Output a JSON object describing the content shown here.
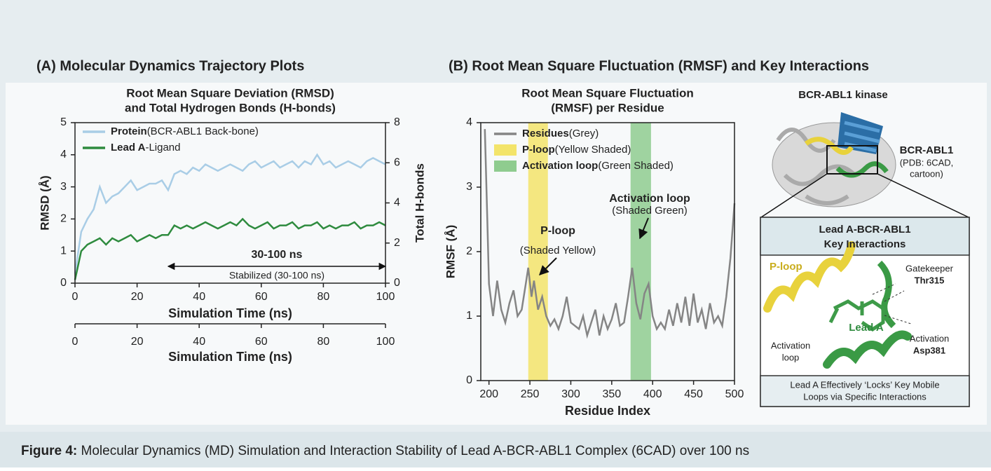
{
  "panel_a_title": "(A)  Molecular Dynamics Trajectory Plots",
  "panel_b_title": "(B)  Root Mean Square Fluctuation (RMSF) and Key Interactions",
  "caption": {
    "label": "Figure 4:",
    "text": "Molecular Dynamics (MD) Simulation and Interaction Stability of Lead A-BCR-ABL1 Complex (6CAD) over 100 ns"
  },
  "structure": {
    "title": "BCR-ABL1 kinase",
    "label": "BCR-ABL1",
    "sublabel": [
      "(PDB: 6CAD,",
      "cartoon)"
    ],
    "inset": {
      "title": [
        "Lead A-BCR-ABL1",
        "Key Interactions"
      ],
      "p_loop": "P-loop",
      "gatekeeper": [
        "Gatekeeper",
        "Thr315"
      ],
      "ligand": "Lead A",
      "activation": [
        "Activation",
        "Asp381"
      ],
      "activation_loop": [
        "Activation",
        "loop"
      ],
      "footer": [
        "Lead A Effectively ‘Locks’ Key Mobile",
        "Loops via Specific Interactions"
      ]
    }
  },
  "chart_data": [
    {
      "type": "line",
      "title": [
        "Root Mean Square Deviation (RMSD)",
        "and Total Hydrogen Bonds (H-bonds)"
      ],
      "xlabel": "Simulation Time (ns)",
      "ylabel": "RMSD (Å)",
      "y2label": "Total H-bonds",
      "x2label": "Simulation Time (ns)",
      "xlim": [
        0,
        100
      ],
      "xticks": [
        0,
        20,
        40,
        60,
        80,
        100
      ],
      "x2lim": [
        0,
        100
      ],
      "x2ticks": [
        0,
        20,
        40,
        60,
        80,
        100
      ],
      "ylim": [
        0,
        5
      ],
      "yticks": [
        0,
        1,
        2,
        3,
        4,
        5
      ],
      "y2lim": [
        0,
        8
      ],
      "y2ticks": [
        0,
        2,
        4,
        6,
        8
      ],
      "x": [
        0,
        2,
        4,
        6,
        8,
        10,
        12,
        14,
        16,
        18,
        20,
        22,
        24,
        26,
        28,
        30,
        32,
        34,
        36,
        38,
        40,
        42,
        44,
        46,
        48,
        50,
        52,
        54,
        56,
        58,
        60,
        62,
        64,
        66,
        68,
        70,
        72,
        74,
        76,
        78,
        80,
        82,
        84,
        86,
        88,
        90,
        92,
        94,
        96,
        98,
        100
      ],
      "series": [
        {
          "name": "Protein",
          "detail": "(BCR-ABL1 Back-bone)",
          "color": "#a9cde6",
          "values": [
            0.3,
            1.6,
            2.0,
            2.3,
            3.0,
            2.5,
            2.7,
            2.8,
            3.0,
            3.2,
            2.9,
            3.0,
            3.1,
            3.1,
            3.2,
            2.9,
            3.4,
            3.5,
            3.4,
            3.6,
            3.5,
            3.7,
            3.6,
            3.5,
            3.6,
            3.7,
            3.6,
            3.5,
            3.7,
            3.8,
            3.6,
            3.7,
            3.8,
            3.6,
            3.7,
            3.8,
            3.6,
            3.8,
            3.7,
            4.0,
            3.7,
            3.8,
            3.6,
            3.7,
            3.8,
            3.7,
            3.6,
            3.8,
            3.9,
            3.8,
            3.7
          ]
        },
        {
          "name": "Lead A",
          "detail": "-Ligand",
          "color": "#2e8b3e",
          "values": [
            0.1,
            1.0,
            1.2,
            1.3,
            1.4,
            1.2,
            1.4,
            1.3,
            1.4,
            1.5,
            1.3,
            1.4,
            1.5,
            1.4,
            1.5,
            1.5,
            1.8,
            1.7,
            1.8,
            1.7,
            1.8,
            1.9,
            1.8,
            1.7,
            1.8,
            1.9,
            1.8,
            2.0,
            1.8,
            1.7,
            1.8,
            1.9,
            1.7,
            1.8,
            1.8,
            1.9,
            1.7,
            1.8,
            1.8,
            1.9,
            1.7,
            1.8,
            1.7,
            1.8,
            1.8,
            1.9,
            1.7,
            1.8,
            1.8,
            1.9,
            1.8
          ]
        }
      ],
      "annotation": {
        "title": "30-100 ns",
        "text": "Stabilized (30-100 ns)",
        "range": [
          30,
          100
        ]
      }
    },
    {
      "type": "line",
      "title": [
        "Root Mean Square Fluctuation",
        "(RMSF) per Residue"
      ],
      "xlabel": "Residue Index",
      "ylabel": "RMSF (Å)",
      "xlim": [
        190,
        500
      ],
      "xticks": [
        200,
        250,
        300,
        350,
        400,
        450,
        500
      ],
      "ylim": [
        0,
        4
      ],
      "yticks": [
        0,
        1,
        2,
        3,
        4
      ],
      "x": [
        195,
        198,
        200,
        205,
        210,
        215,
        220,
        225,
        230,
        235,
        240,
        245,
        248,
        252,
        255,
        260,
        265,
        270,
        275,
        280,
        285,
        290,
        295,
        300,
        305,
        310,
        315,
        320,
        325,
        330,
        335,
        340,
        345,
        350,
        355,
        360,
        365,
        370,
        375,
        380,
        385,
        390,
        395,
        400,
        405,
        410,
        415,
        420,
        425,
        430,
        435,
        440,
        445,
        450,
        455,
        460,
        465,
        470,
        475,
        480,
        485,
        490,
        495,
        500
      ],
      "series": [
        {
          "name": "Residues",
          "detail": "(Grey)",
          "color": "#858585",
          "values": [
            3.9,
            2.5,
            1.5,
            1.0,
            1.55,
            1.1,
            0.9,
            1.2,
            1.4,
            1.0,
            1.1,
            1.5,
            1.75,
            1.3,
            1.55,
            1.1,
            1.3,
            1.0,
            0.85,
            0.95,
            0.8,
            1.0,
            1.3,
            0.9,
            0.85,
            0.8,
            1.0,
            0.7,
            0.9,
            1.1,
            0.7,
            1.0,
            0.8,
            0.95,
            1.2,
            0.85,
            0.9,
            1.3,
            1.75,
            1.2,
            0.95,
            1.35,
            1.5,
            1.0,
            0.8,
            0.9,
            0.8,
            1.1,
            0.85,
            1.2,
            0.9,
            1.3,
            0.85,
            1.35,
            0.9,
            1.1,
            0.8,
            1.2,
            0.9,
            1.0,
            0.85,
            1.3,
            1.9,
            2.75
          ]
        }
      ],
      "regions": [
        {
          "name": "P-loop",
          "detail": "(Yellow Shaded)",
          "color": "#f3e46a",
          "range": [
            248,
            272
          ]
        },
        {
          "name": "Activation loop",
          "detail": "(Green Shaded)",
          "color": "#8fcc8f",
          "range": [
            373,
            398
          ]
        }
      ],
      "annotations": [
        {
          "title": "P-loop",
          "text": "(Shaded Yellow)"
        },
        {
          "title": "Activation loop",
          "text": "(Shaded Green)"
        }
      ]
    }
  ]
}
